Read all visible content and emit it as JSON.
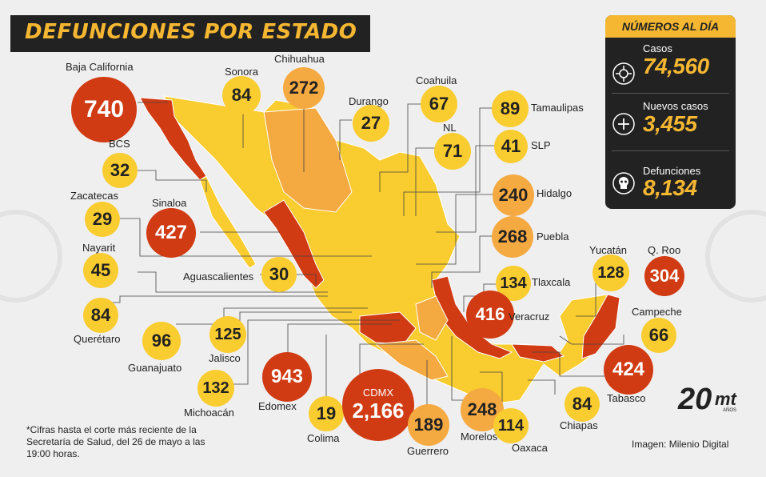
{
  "title": "DEFUNCIONES POR ESTADO",
  "summary": {
    "header": "NÚMEROS AL DÍA",
    "cases_label": "Casos",
    "cases_value": "74,560",
    "new_cases_label": "Nuevos casos",
    "new_cases_value": "3,455",
    "deaths_label": "Defunciones",
    "deaths_value": "8,134"
  },
  "states": {
    "baja_california": {
      "name": "Baja California",
      "value": "740"
    },
    "sonora": {
      "name": "Sonora",
      "value": "84"
    },
    "chihuahua": {
      "name": "Chihuahua",
      "value": "272"
    },
    "durango": {
      "name": "Durango",
      "value": "27"
    },
    "coahuila": {
      "name": "Coahuila",
      "value": "67"
    },
    "tamaulipas": {
      "name": "Tamaulipas",
      "value": "89"
    },
    "nl": {
      "name": "NL",
      "value": "71"
    },
    "slp": {
      "name": "SLP",
      "value": "41"
    },
    "bcs": {
      "name": "BCS",
      "value": "32"
    },
    "hidalgo": {
      "name": "Hidalgo",
      "value": "240"
    },
    "zacatecas": {
      "name": "Zacatecas",
      "value": "29"
    },
    "sinaloa": {
      "name": "Sinaloa",
      "value": "427"
    },
    "puebla": {
      "name": "Puebla",
      "value": "268"
    },
    "nayarit": {
      "name": "Nayarit",
      "value": "45"
    },
    "aguascalientes": {
      "name": "Aguascalientes",
      "value": "30"
    },
    "yucatan": {
      "name": "Yucatán",
      "value": "128"
    },
    "q_roo": {
      "name": "Q. Roo",
      "value": "304"
    },
    "tlaxcala": {
      "name": "Tlaxcala",
      "value": "134"
    },
    "queretaro": {
      "name": "Querétaro",
      "value": "84"
    },
    "veracruz": {
      "name": "Veracruz",
      "value": "416"
    },
    "campeche": {
      "name": "Campeche",
      "value": "66"
    },
    "guanajuato": {
      "name": "Guanajuato",
      "value": "96"
    },
    "jalisco": {
      "name": "Jalisco",
      "value": "125"
    },
    "tabasco": {
      "name": "Tabasco",
      "value": "424"
    },
    "michoacan": {
      "name": "Michoacán",
      "value": "132"
    },
    "edomex": {
      "name": "Edomex",
      "value": "943"
    },
    "colima": {
      "name": "Colima",
      "value": "19"
    },
    "cdmx": {
      "name": "CDMX",
      "value": "2,166"
    },
    "morelos": {
      "name": "Morelos",
      "value": "248"
    },
    "guerrero": {
      "name": "Guerrero",
      "value": "189"
    },
    "oaxaca": {
      "name": "Oaxaca",
      "value": "114"
    },
    "chiapas": {
      "name": "Chiapas",
      "value": "84"
    }
  },
  "note": "*Cifras hasta el corte más reciente de la Secretaría de Salud, del 26 de mayo a las 19:00 horas.",
  "credit": "Imagen: Milenio Digital",
  "logo": {
    "number": "20",
    "text": "mt",
    "small": "AÑOS"
  },
  "colors": {
    "low": "#f9cc2f",
    "medium": "#f5a941",
    "high": "#d13b14",
    "accent": "#f5b731",
    "panel": "#222222"
  }
}
